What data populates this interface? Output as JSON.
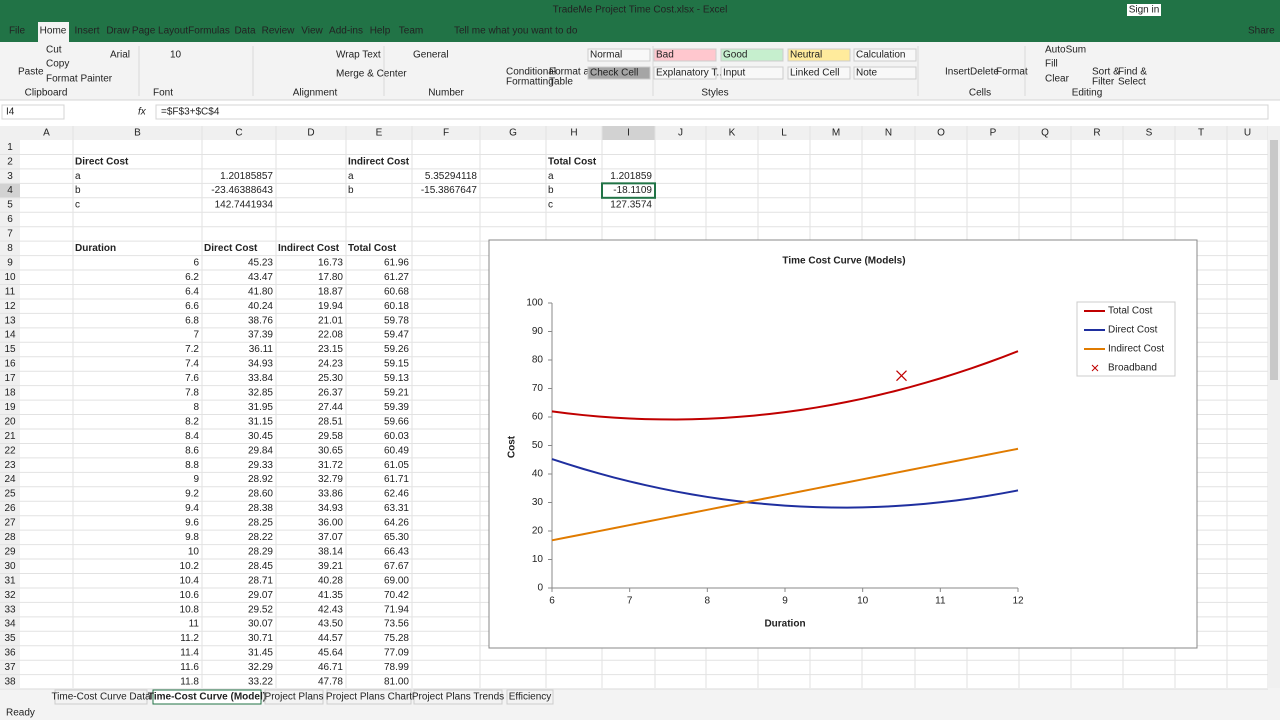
{
  "window": {
    "title": "TradeMe Project Time Cost.xlsx - Excel",
    "sign_in": "Sign in"
  },
  "tabs": [
    "File",
    "Home",
    "Insert",
    "Draw",
    "Page Layout",
    "Formulas",
    "Data",
    "Review",
    "View",
    "Add-ins",
    "Help",
    "Team"
  ],
  "tell_me": "Tell me what you want to do",
  "share": "Share",
  "ribbon": [
    {
      "label": "Clipboard",
      "items": [
        "Paste",
        "Cut",
        "Copy",
        "Format Painter"
      ]
    },
    {
      "label": "Font",
      "items": [
        "Arial",
        "10"
      ]
    },
    {
      "label": "Alignment",
      "items": [
        "Wrap Text",
        "Merge & Center"
      ]
    },
    {
      "label": "Number",
      "items": [
        "General"
      ]
    },
    {
      "label": "Styles",
      "items": [
        "Conditional",
        "Formatting",
        "Format as",
        "Table",
        "Normal",
        "Bad",
        "Good",
        "Neutral",
        "Calculation",
        "Check Cell",
        "Explanatory T...",
        "Input",
        "Linked Cell",
        "Note"
      ]
    },
    {
      "label": "Cells",
      "items": [
        "Insert",
        "Delete",
        "Format"
      ]
    },
    {
      "label": "Editing",
      "items": [
        "AutoSum",
        "Fill",
        "Clear",
        "Sort &",
        "Filter",
        "Find &",
        "Select"
      ]
    }
  ],
  "formula_bar": {
    "name_box": "I4",
    "fx": "fx",
    "formula": "=$F$3+$C$4"
  },
  "columns": [
    "A",
    "B",
    "C",
    "D",
    "E",
    "F",
    "G",
    "H",
    "I",
    "J",
    "K",
    "L",
    "M",
    "N",
    "O",
    "P",
    "Q",
    "R",
    "S",
    "T",
    "U"
  ],
  "rows": [
    1,
    2,
    3,
    4,
    5,
    6,
    7,
    8,
    9,
    10,
    11,
    12,
    13,
    14,
    15,
    16,
    17,
    18,
    19,
    20,
    21,
    22,
    23,
    24,
    25,
    26,
    27,
    28,
    29,
    30,
    31,
    32,
    33,
    34,
    35,
    36,
    37,
    38
  ],
  "models": [
    {
      "title": "Direct Cost",
      "params": [
        [
          "a",
          "1.20185857"
        ],
        [
          "b",
          "-23.46388643"
        ],
        [
          "c",
          "142.7441934"
        ]
      ]
    },
    {
      "title": "Indirect Cost",
      "params": [
        [
          "a",
          "5.35294118"
        ],
        [
          "b",
          "-15.3867647"
        ]
      ]
    },
    {
      "title": "Total Cost",
      "params": [
        [
          "a",
          "1.201859"
        ],
        [
          "b",
          "-18.1109"
        ],
        [
          "c",
          "127.3574"
        ]
      ]
    }
  ],
  "table": {
    "headers": [
      "Duration",
      "Direct Cost",
      "Indirect Cost",
      "Total Cost"
    ],
    "rows": [
      [
        "6",
        "45.23",
        "16.73",
        "61.96"
      ],
      [
        "6.2",
        "43.47",
        "17.80",
        "61.27"
      ],
      [
        "6.4",
        "41.80",
        "18.87",
        "60.68"
      ],
      [
        "6.6",
        "40.24",
        "19.94",
        "60.18"
      ],
      [
        "6.8",
        "38.76",
        "21.01",
        "59.78"
      ],
      [
        "7",
        "37.39",
        "22.08",
        "59.47"
      ],
      [
        "7.2",
        "36.11",
        "23.15",
        "59.26"
      ],
      [
        "7.4",
        "34.93",
        "24.23",
        "59.15"
      ],
      [
        "7.6",
        "33.84",
        "25.30",
        "59.13"
      ],
      [
        "7.8",
        "32.85",
        "26.37",
        "59.21"
      ],
      [
        "8",
        "31.95",
        "27.44",
        "59.39"
      ],
      [
        "8.2",
        "31.15",
        "28.51",
        "59.66"
      ],
      [
        "8.4",
        "30.45",
        "29.58",
        "60.03"
      ],
      [
        "8.6",
        "29.84",
        "30.65",
        "60.49"
      ],
      [
        "8.8",
        "29.33",
        "31.72",
        "61.05"
      ],
      [
        "9",
        "28.92",
        "32.79",
        "61.71"
      ],
      [
        "9.2",
        "28.60",
        "33.86",
        "62.46"
      ],
      [
        "9.4",
        "28.38",
        "34.93",
        "63.31"
      ],
      [
        "9.6",
        "28.25",
        "36.00",
        "64.26"
      ],
      [
        "9.8",
        "28.22",
        "37.07",
        "65.30"
      ],
      [
        "10",
        "28.29",
        "38.14",
        "66.43"
      ],
      [
        "10.2",
        "28.45",
        "39.21",
        "67.67"
      ],
      [
        "10.4",
        "28.71",
        "40.28",
        "69.00"
      ],
      [
        "10.6",
        "29.07",
        "41.35",
        "70.42"
      ],
      [
        "10.8",
        "29.52",
        "42.43",
        "71.94"
      ],
      [
        "11",
        "30.07",
        "43.50",
        "73.56"
      ],
      [
        "11.2",
        "30.71",
        "44.57",
        "75.28"
      ],
      [
        "11.4",
        "31.45",
        "45.64",
        "77.09"
      ],
      [
        "11.6",
        "32.29",
        "46.71",
        "78.99"
      ],
      [
        "11.8",
        "33.22",
        "47.78",
        "81.00"
      ]
    ]
  },
  "chart_data": {
    "type": "line",
    "title": "Time Cost Curve (Models)",
    "x_label": "Duration",
    "y_label": "Cost",
    "x": [
      6,
      6.2,
      6.4,
      6.6,
      6.8,
      7,
      7.2,
      7.4,
      7.6,
      7.8,
      8,
      8.2,
      8.4,
      8.6,
      8.8,
      9,
      9.2,
      9.4,
      9.6,
      9.8,
      10,
      10.2,
      10.4,
      10.6,
      10.8,
      11,
      11.2,
      11.4,
      11.6,
      11.8,
      12
    ],
    "series": [
      {
        "name": "Total Cost",
        "color": "#c00000",
        "values": [
          61.96,
          61.27,
          60.68,
          60.18,
          59.78,
          59.47,
          59.26,
          59.15,
          59.13,
          59.21,
          59.39,
          59.66,
          60.03,
          60.49,
          61.05,
          61.71,
          62.46,
          63.31,
          64.26,
          65.3,
          66.43,
          67.67,
          69.0,
          70.42,
          71.94,
          73.56,
          75.28,
          77.09,
          78.99,
          81.0,
          83.09
        ]
      },
      {
        "name": "Direct Cost",
        "color": "#1f2f9f",
        "values": [
          45.23,
          43.47,
          41.8,
          40.24,
          38.76,
          37.39,
          36.11,
          34.93,
          33.84,
          32.85,
          31.95,
          31.15,
          30.45,
          29.84,
          29.33,
          28.92,
          28.6,
          28.38,
          28.25,
          28.22,
          28.29,
          28.45,
          28.71,
          29.07,
          29.52,
          30.07,
          30.71,
          31.45,
          32.29,
          33.22,
          34.24
        ]
      },
      {
        "name": "Indirect Cost",
        "color": "#e07b00",
        "values": [
          16.73,
          17.8,
          18.87,
          19.94,
          21.01,
          22.08,
          23.15,
          24.23,
          25.3,
          26.37,
          27.44,
          28.51,
          29.58,
          30.65,
          31.72,
          32.79,
          33.86,
          34.93,
          36.0,
          37.07,
          38.14,
          39.21,
          40.28,
          41.35,
          42.43,
          43.5,
          44.57,
          45.64,
          46.71,
          47.78,
          48.85
        ]
      },
      {
        "name": "Broadband",
        "color": "#c00000",
        "marker": "x",
        "x": [
          10.5
        ],
        "values": [
          74.5
        ]
      }
    ],
    "xlim": [
      6,
      12
    ],
    "xticks": [
      6,
      7,
      8,
      9,
      10,
      11,
      12
    ],
    "ylim": [
      0,
      100
    ],
    "yticks": [
      0,
      10,
      20,
      30,
      40,
      50,
      60,
      70,
      80,
      90,
      100
    ],
    "grid": false,
    "legend": "right"
  },
  "sheets": [
    "Time-Cost Curve Data",
    "Time-Cost Curve (Model)",
    "Project Plans",
    "Project Plans Chart",
    "Project Plans Trends",
    "Efficiency"
  ],
  "active_sheet": 1,
  "status": "Ready"
}
